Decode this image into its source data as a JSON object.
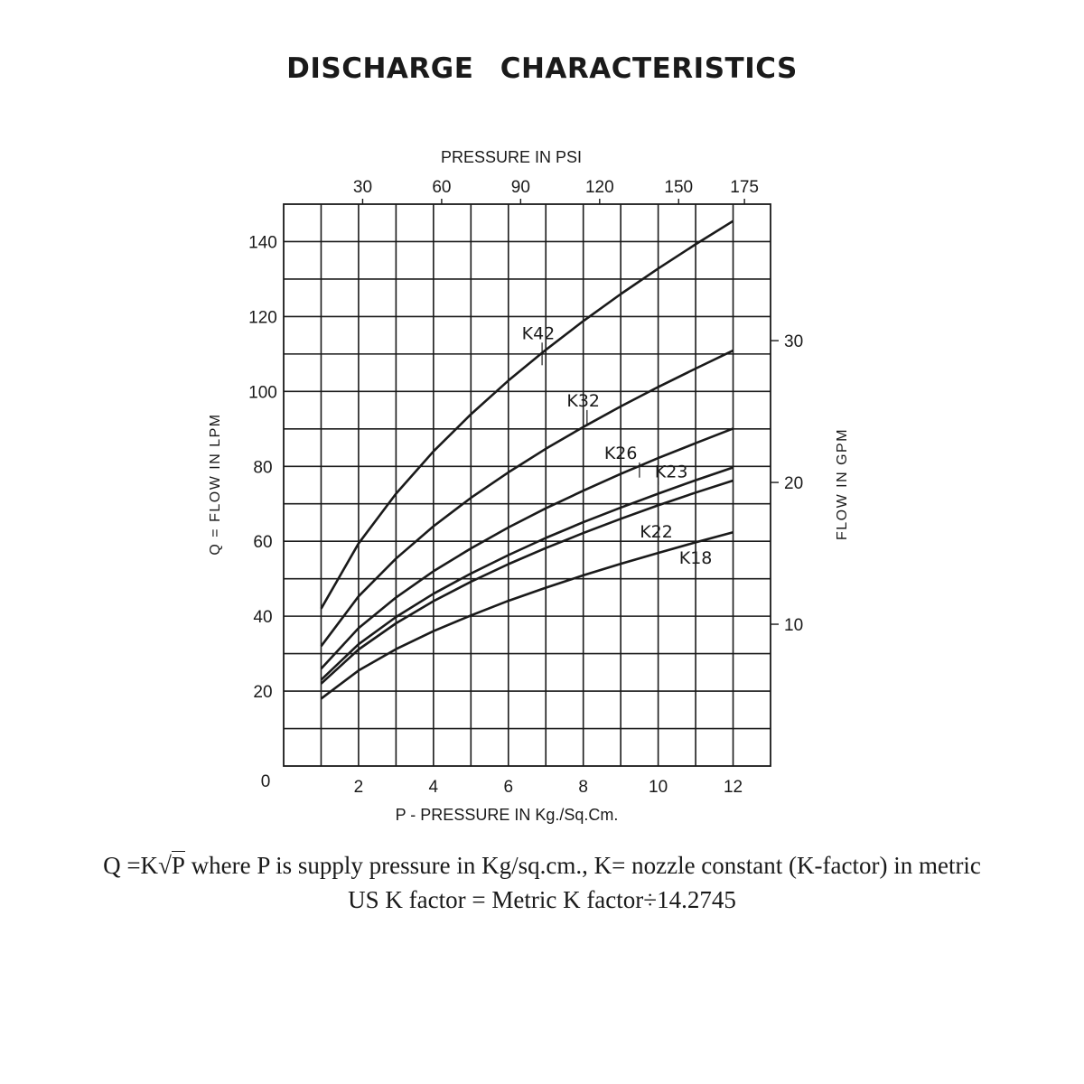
{
  "title": "DISCHARGE    CHARACTERISTICS",
  "chart_data": {
    "type": "line",
    "x_bottom": {
      "label": "P - PRESSURE IN Kg./Sq.Cm.",
      "ticks": [
        2,
        4,
        6,
        8,
        10,
        12
      ],
      "range": [
        0,
        13
      ],
      "tick_labels": [
        "0",
        "2",
        "4",
        "6",
        "8",
        "10",
        "12"
      ]
    },
    "x_top": {
      "label": "PRESSURE IN PSI",
      "ticks": [
        30,
        60,
        90,
        120,
        150,
        175
      ]
    },
    "y_left": {
      "label": "Q = FLOW IN LPM",
      "ticks": [
        20,
        40,
        60,
        80,
        100,
        120,
        140
      ],
      "range": [
        0,
        150
      ]
    },
    "y_right": {
      "label": "FLOW IN GPM",
      "ticks": [
        10,
        20,
        30
      ]
    },
    "grid": true,
    "series": [
      {
        "name": "K42",
        "x": [
          1,
          2,
          3,
          4,
          5,
          6,
          7,
          8,
          9,
          10,
          11,
          12
        ],
        "y": [
          42,
          59.4,
          72.7,
          84,
          93.9,
          102.9,
          111.1,
          118.8,
          126,
          132.8,
          139.3,
          145.5
        ]
      },
      {
        "name": "K32",
        "x": [
          1,
          2,
          3,
          4,
          5,
          6,
          7,
          8,
          9,
          10,
          11,
          12
        ],
        "y": [
          32,
          45.3,
          55.4,
          64,
          71.6,
          78.4,
          84.7,
          90.5,
          96,
          101.2,
          106.1,
          110.9
        ]
      },
      {
        "name": "K26",
        "x": [
          1,
          2,
          3,
          4,
          5,
          6,
          7,
          8,
          9,
          10,
          11,
          12
        ],
        "y": [
          26,
          36.8,
          45,
          52,
          58.1,
          63.7,
          68.8,
          73.5,
          78,
          82.2,
          86.2,
          90.1
        ]
      },
      {
        "name": "K23",
        "x": [
          1,
          2,
          3,
          4,
          5,
          6,
          7,
          8,
          9,
          10,
          11,
          12
        ],
        "y": [
          23,
          32.5,
          39.8,
          46,
          51.4,
          56.3,
          60.9,
          65.1,
          69,
          72.7,
          76.3,
          79.7
        ]
      },
      {
        "name": "K22",
        "x": [
          1,
          2,
          3,
          4,
          5,
          6,
          7,
          8,
          9,
          10,
          11,
          12
        ],
        "y": [
          22,
          31.1,
          38.1,
          44,
          49.2,
          53.9,
          58.2,
          62.2,
          66,
          69.6,
          73,
          76.2
        ]
      },
      {
        "name": "K18",
        "x": [
          1,
          2,
          3,
          4,
          5,
          6,
          7,
          8,
          9,
          10,
          11,
          12
        ],
        "y": [
          18,
          25.5,
          31.2,
          36,
          40.2,
          44.1,
          47.6,
          50.9,
          54,
          56.9,
          59.7,
          62.4
        ]
      }
    ]
  },
  "formula": {
    "line1_prefix": "Q =K",
    "sqrt_symbol": "√",
    "radicand": "P",
    "line1_suffix": " where P is supply pressure in Kg/sq.cm., K= nozzle constant (K-factor) in metric",
    "line2": "US K factor = Metric K factor÷14.2745"
  }
}
